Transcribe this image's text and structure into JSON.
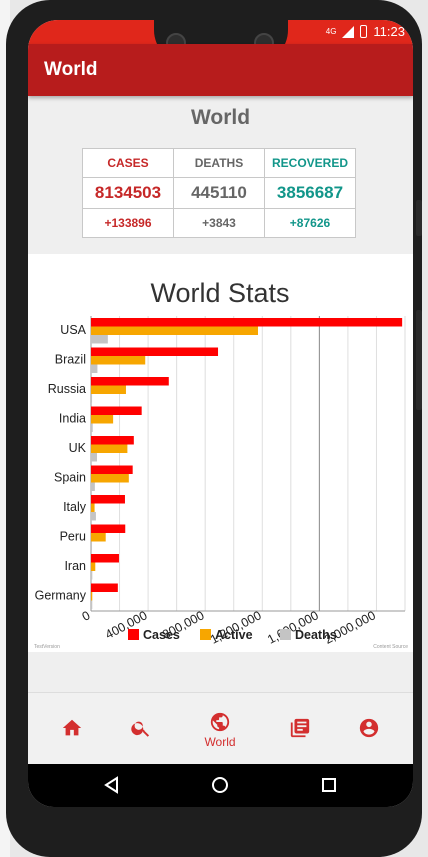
{
  "status_bar": {
    "network": "4G",
    "time": "11:23",
    "icons": [
      "signal-icon",
      "battery-icon"
    ]
  },
  "app_bar": {
    "title": "World"
  },
  "page_title": "World",
  "stats_table": {
    "headers": [
      "CASES",
      "DEATHS",
      "RECOVERED"
    ],
    "totals": [
      "8134503",
      "445110",
      "3856687"
    ],
    "deltas": [
      "+133896",
      "+3843",
      "+87626"
    ],
    "colors": {
      "cases": "#c62828",
      "deaths": "#666666",
      "recovered": "#12968a"
    }
  },
  "chart_data": {
    "type": "bar",
    "orientation": "horizontal",
    "title": "World Stats",
    "categories": [
      "USA",
      "Brazil",
      "Russia",
      "India",
      "UK",
      "Spain",
      "Italy",
      "Peru",
      "Iran",
      "Germany"
    ],
    "series": [
      {
        "name": "Cases",
        "color": "#ff0000",
        "values": [
          2180000,
          890000,
          545000,
          355000,
          300000,
          292000,
          238000,
          240000,
          196000,
          188000
        ]
      },
      {
        "name": "Active",
        "color": "#f7a600",
        "values": [
          1170000,
          380000,
          245000,
          155000,
          255000,
          265000,
          25000,
          103000,
          30000,
          9000
        ]
      },
      {
        "name": "Deaths",
        "color": "#c4c4c4",
        "values": [
          118000,
          45000,
          7300,
          12000,
          42000,
          27000,
          34500,
          7100,
          9300,
          8900
        ]
      }
    ],
    "xlim": [
      0,
      2200000
    ],
    "xticks": [
      0,
      400000,
      800000,
      1200000,
      1600000,
      2000000
    ],
    "xtick_labels": [
      "0",
      "400,000",
      "800,000",
      "1,200,000",
      "1,600,000",
      "2,000,000"
    ],
    "grid": true,
    "legend": "bottom-center",
    "footnotes": [
      "TestVersion",
      "Content Source"
    ]
  },
  "bottom_nav": {
    "items": [
      {
        "name": "home",
        "icon": "home-icon",
        "label": ""
      },
      {
        "name": "search",
        "icon": "search-icon",
        "label": ""
      },
      {
        "name": "world",
        "icon": "globe-icon",
        "label": "World",
        "active": true
      },
      {
        "name": "news",
        "icon": "news-icon",
        "label": ""
      },
      {
        "name": "profile",
        "icon": "account-icon",
        "label": ""
      }
    ],
    "accent": "#d32f2f"
  },
  "system_nav": [
    "back-icon",
    "home-circle-icon",
    "recents-icon"
  ]
}
